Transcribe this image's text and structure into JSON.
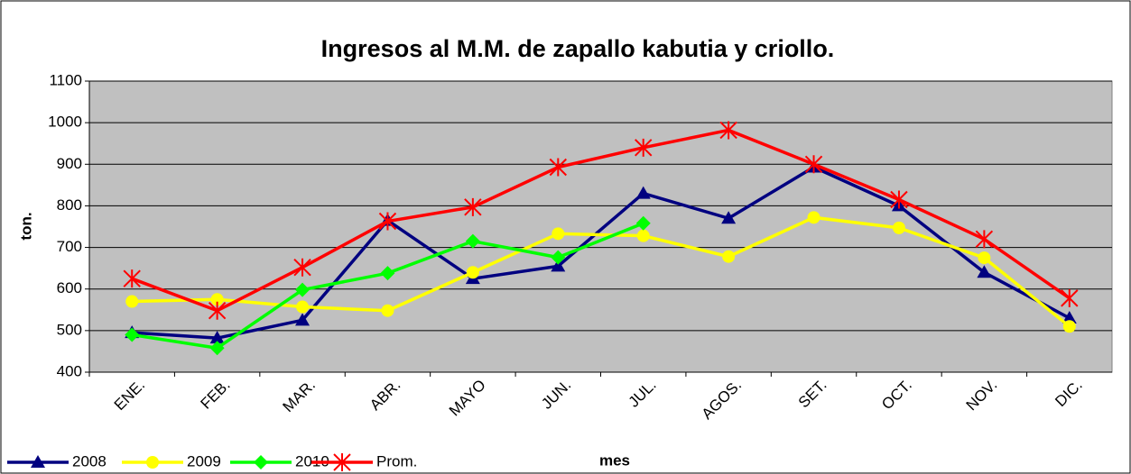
{
  "chart_data": {
    "type": "line",
    "title": "Ingresos al M.M. de zapallo kabutia y criollo.",
    "xlabel": "mes",
    "ylabel": "ton.",
    "categories": [
      "ENE.",
      "FEB.",
      "MAR.",
      "ABR.",
      "MAYO",
      "JUN.",
      "JUL.",
      "AGOS.",
      "SET.",
      "OCT.",
      "NOV.",
      "DIC."
    ],
    "series": [
      {
        "name": "2008",
        "color": "#000080",
        "marker": "triangle",
        "values": [
          495,
          482,
          525,
          765,
          625,
          655,
          830,
          770,
          893,
          800,
          640,
          530
        ]
      },
      {
        "name": "2009",
        "color": "#ffff00",
        "marker": "circle",
        "values": [
          570,
          575,
          557,
          548,
          640,
          733,
          728,
          678,
          772,
          747,
          675,
          510
        ]
      },
      {
        "name": "2010",
        "color": "#00ff00",
        "marker": "diamond",
        "values": [
          490,
          458,
          598,
          638,
          715,
          676,
          758,
          null,
          null,
          null,
          null,
          null
        ]
      },
      {
        "name": "Prom.",
        "color": "#ff0000",
        "marker": "asterisk",
        "values": [
          625,
          548,
          652,
          763,
          797,
          893,
          940,
          982,
          900,
          815,
          720,
          578
        ]
      }
    ],
    "ylim": [
      400,
      1100
    ],
    "yticks": [
      400,
      500,
      600,
      700,
      800,
      900,
      1000,
      1100
    ],
    "grid": true,
    "legend": "bottom-left"
  }
}
